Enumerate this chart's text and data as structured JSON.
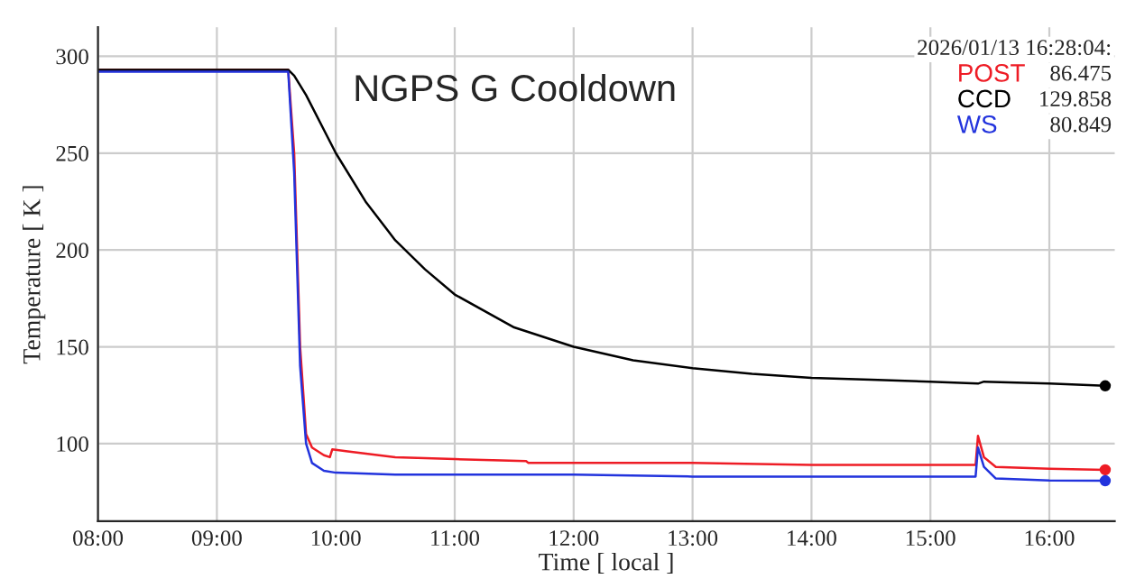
{
  "chart_data": {
    "type": "line",
    "title": "NGPS G Cooldown",
    "xlabel": "Time [ local ]",
    "ylabel": "Temperature [ K ]",
    "annotations": [
      "2026/01/13 16:28:04:",
      "86.475",
      "129.858",
      "80.849"
    ],
    "xlim": [
      8,
      16.55
    ],
    "xticks": [
      {
        "value": 8,
        "label": "08:00"
      },
      {
        "value": 9,
        "label": "09:00"
      },
      {
        "value": 10,
        "label": "10:00"
      },
      {
        "value": 11,
        "label": "11:00"
      },
      {
        "value": 12,
        "label": "12:00"
      },
      {
        "value": 13,
        "label": "13:00"
      },
      {
        "value": 14,
        "label": "14:00"
      },
      {
        "value": 15,
        "label": "15:00"
      },
      {
        "value": 16,
        "label": "16:00"
      }
    ],
    "ylim": [
      60,
      315
    ],
    "yticks": [
      100,
      150,
      200,
      250,
      300
    ],
    "grid": true,
    "line_style": "solid",
    "series": [
      {
        "name": "POST",
        "color": "#ee1c25",
        "x": [
          8,
          9.6,
          9.65,
          9.7,
          9.75,
          9.8,
          9.9,
          9.95,
          9.97,
          10.1,
          10.5,
          11.0,
          11.6,
          11.62,
          12.0,
          13.0,
          14.0,
          15.0,
          15.38,
          15.4,
          15.45,
          15.55,
          16.0,
          16.47
        ],
        "values": [
          293,
          293,
          250,
          150,
          105,
          98,
          94,
          93,
          97,
          96,
          93,
          92,
          91,
          90,
          90,
          90,
          89,
          89,
          89,
          104,
          93,
          88,
          87,
          86.475
        ]
      },
      {
        "name": "CCD",
        "color": "#000000",
        "x": [
          8,
          9.6,
          9.65,
          9.75,
          10.0,
          10.25,
          10.5,
          10.75,
          11.0,
          11.5,
          12.0,
          12.5,
          13.0,
          13.5,
          14.0,
          14.5,
          15.0,
          15.4,
          15.45,
          16.0,
          16.47
        ],
        "values": [
          293,
          293,
          290,
          280,
          250,
          225,
          205,
          190,
          177,
          160,
          150,
          143,
          139,
          136,
          134,
          133,
          132,
          131,
          132,
          131,
          129.858
        ]
      },
      {
        "name": "WS",
        "color": "#2233dd",
        "x": [
          8,
          9.6,
          9.65,
          9.7,
          9.75,
          9.8,
          9.9,
          10.0,
          10.5,
          11.0,
          12.0,
          13.0,
          14.0,
          15.0,
          15.38,
          15.4,
          15.45,
          15.55,
          16.0,
          16.47
        ],
        "values": [
          292,
          292,
          240,
          140,
          100,
          90,
          86,
          85,
          84,
          84,
          84,
          83,
          83,
          83,
          83,
          98,
          88,
          82,
          81,
          80.849
        ]
      },
      {
        "type": "scatter",
        "color": "#ee1c25",
        "x": [
          16.47
        ],
        "values": [
          86.475
        ]
      },
      {
        "type": "scatter",
        "color": "#000000",
        "x": [
          16.47
        ],
        "values": [
          129.858
        ]
      },
      {
        "type": "scatter",
        "color": "#2233dd",
        "x": [
          16.47
        ],
        "values": [
          80.849
        ]
      }
    ]
  }
}
